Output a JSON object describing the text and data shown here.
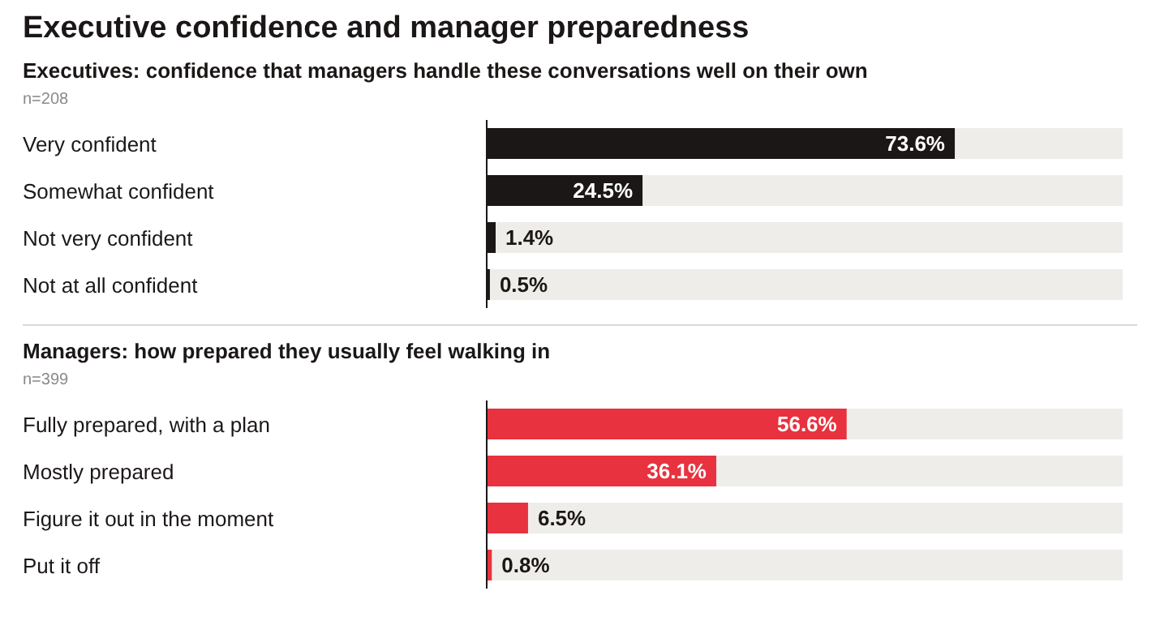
{
  "chart_data": [
    {
      "type": "bar",
      "orientation": "horizontal",
      "title": "Executive confidence and manager preparedness",
      "subtitle": "Executives: confidence that managers handle these conversations well on their own",
      "annotations": [
        "n=208"
      ],
      "categories": [
        "Very confident",
        "Somewhat confident",
        "Not very confident",
        "Not at all confident"
      ],
      "values": [
        73.6,
        24.5,
        1.4,
        0.5
      ],
      "value_labels": [
        "73.6%",
        "24.5%",
        "1.4%",
        "0.5%"
      ],
      "color": "#1a1716",
      "xlim": [
        0,
        100
      ]
    },
    {
      "type": "bar",
      "orientation": "horizontal",
      "title": "Managers: how prepared they usually feel walking in",
      "annotations": [
        "n=399"
      ],
      "categories": [
        "Fully prepared, with a plan",
        "Mostly prepared",
        "Figure it out in the moment",
        "Put it off"
      ],
      "values": [
        56.6,
        36.1,
        6.5,
        0.8
      ],
      "value_labels": [
        "56.6%",
        "36.1%",
        "6.5%",
        "0.8%"
      ],
      "color": "#e8323f",
      "xlim": [
        0,
        100
      ]
    }
  ]
}
